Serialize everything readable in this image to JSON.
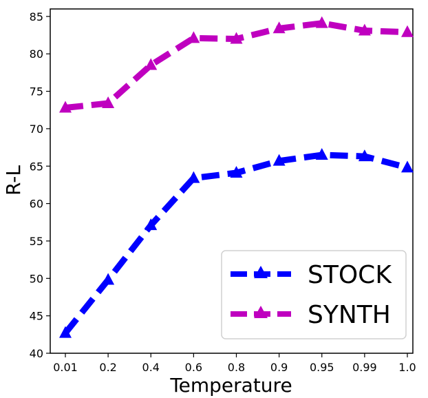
{
  "chart_data": {
    "type": "line",
    "title": "",
    "xlabel": "Temperature",
    "ylabel": "R-L",
    "categories": [
      "0.01",
      "0.2",
      "0.4",
      "0.6",
      "0.8",
      "0.9",
      "0.95",
      "0.99",
      "1.0"
    ],
    "yticks": [
      "40",
      "45",
      "50",
      "55",
      "60",
      "65",
      "70",
      "75",
      "80",
      "85"
    ],
    "ylim": [
      40,
      86
    ],
    "grid": false,
    "legend_position": "lower-right",
    "series": [
      {
        "name": "STOCK",
        "color": "#0000ff",
        "marker": "triangle",
        "line_style": "dashed",
        "values": [
          42.7,
          49.8,
          57.1,
          63.4,
          64.1,
          65.7,
          66.5,
          66.3,
          64.8
        ]
      },
      {
        "name": "SYNTH",
        "color": "#bf00bf",
        "marker": "triangle",
        "line_style": "dashed",
        "values": [
          72.8,
          73.4,
          78.5,
          82.1,
          82.0,
          83.4,
          84.1,
          83.1,
          82.9
        ]
      }
    ]
  }
}
